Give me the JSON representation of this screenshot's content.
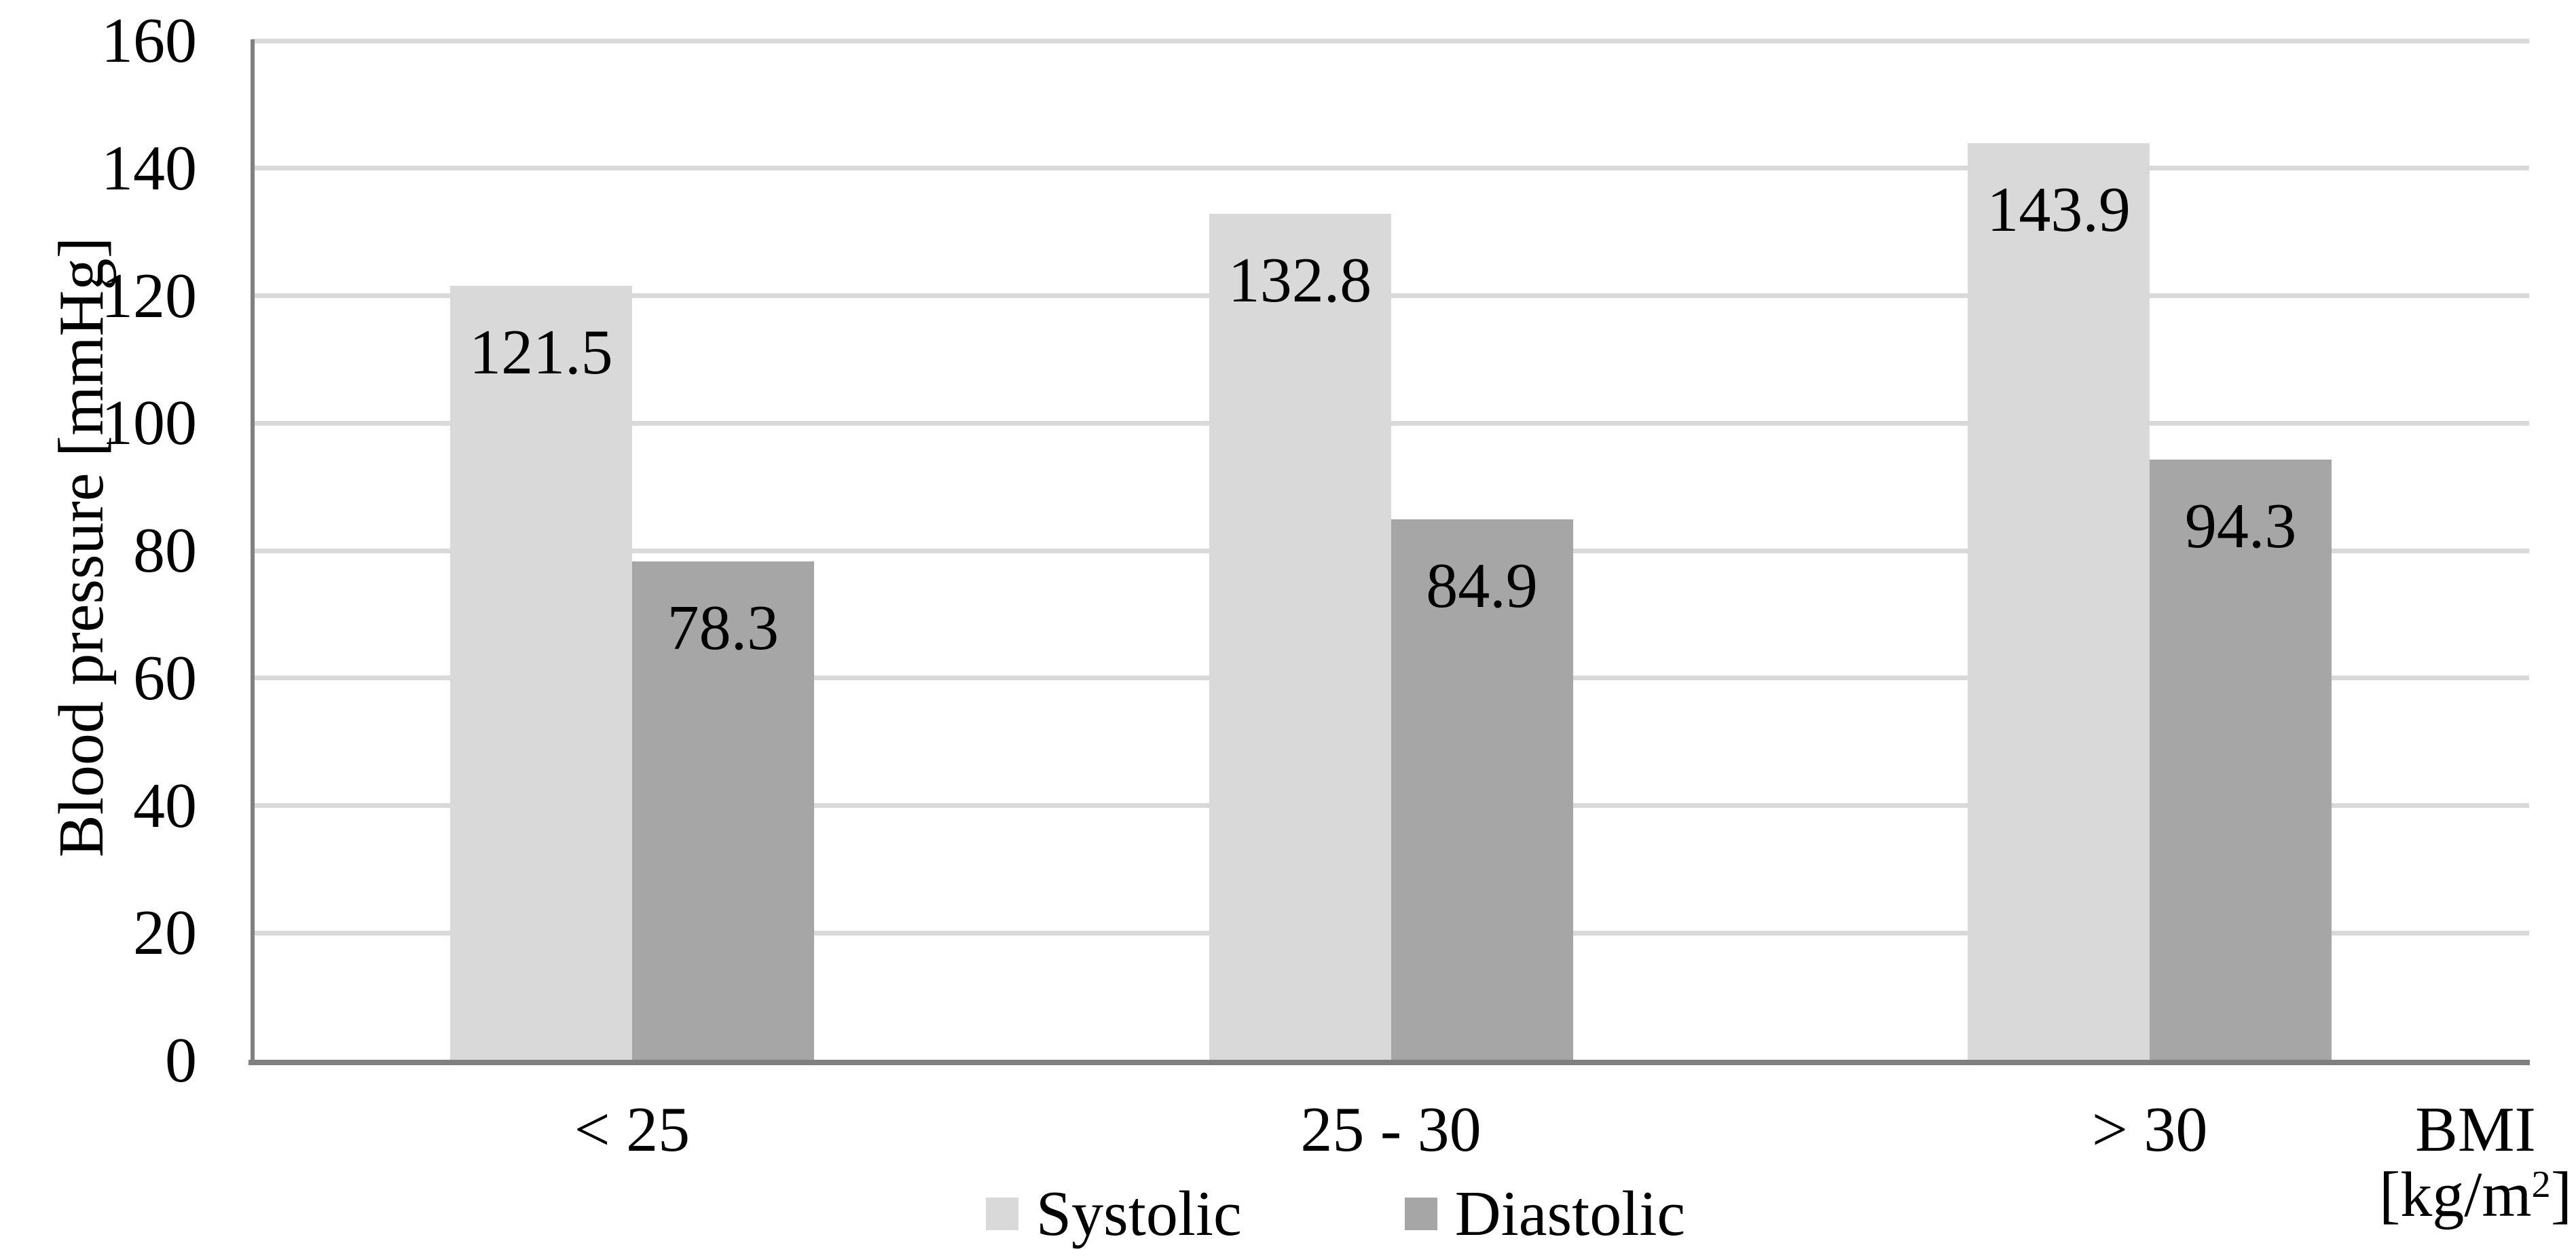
{
  "chart_data": {
    "type": "bar",
    "title": "",
    "categories": [
      "< 25",
      "25 - 30",
      "> 30"
    ],
    "series": [
      {
        "name": "Systolic",
        "color": "#d9d9d9",
        "values": [
          121.5,
          132.8,
          143.9
        ]
      },
      {
        "name": "Diastolic",
        "color": "#a6a6a6",
        "values": [
          78.3,
          84.9,
          94.3
        ]
      }
    ],
    "value_labels": {
      "Systolic": [
        "121.5",
        "132.8",
        "143.9"
      ],
      "Diastolic": [
        "78.3",
        "84.9",
        "94.3"
      ]
    },
    "ylabel": "Blood pressure [mmHg]",
    "xlabel": {
      "line1": "BMI",
      "unit_prefix": "[kg/m",
      "unit_sup": "2",
      "unit_suffix": "]"
    },
    "ylim": [
      0,
      160
    ],
    "yticks": [
      0,
      20,
      40,
      60,
      80,
      100,
      120,
      140,
      160
    ],
    "grid": true,
    "legend_position": "bottom",
    "colors": {
      "gridline": "#d9d9d9",
      "axis": "#808080",
      "text": "#000000",
      "background": "#ffffff"
    }
  }
}
